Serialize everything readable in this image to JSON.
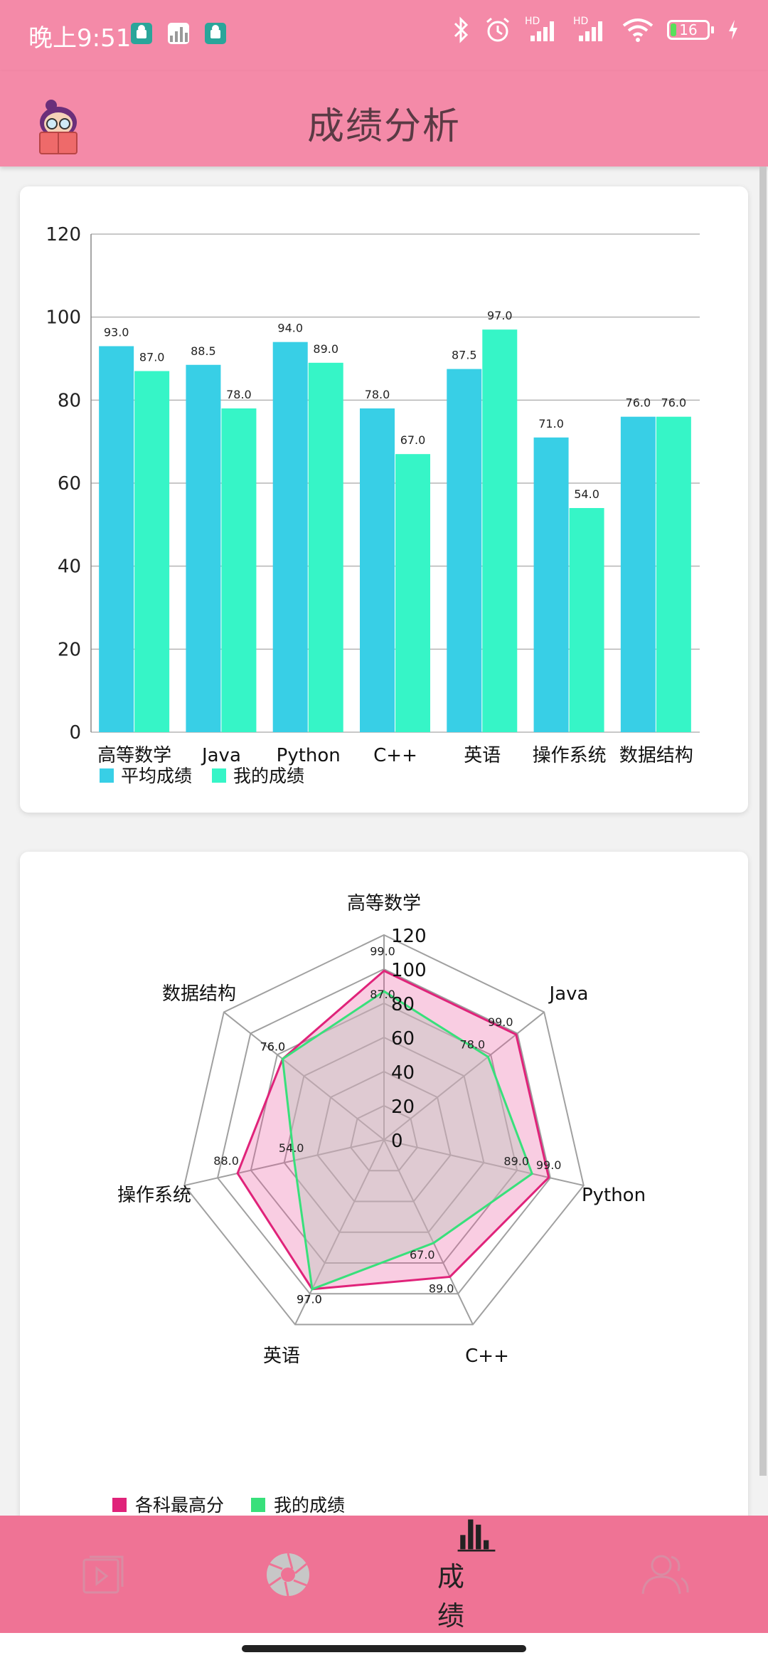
{
  "status_bar": {
    "time": "晚上9:51",
    "network_badge_1": "HD",
    "network_badge_2": "HD",
    "battery_level": "16",
    "icons": [
      "android-notification-icon",
      "image-notification-icon",
      "android-notification-icon",
      "bluetooth-icon",
      "alarm-icon",
      "signal-icon",
      "signal-icon",
      "wifi-icon",
      "battery-icon",
      "charging-icon"
    ]
  },
  "app_bar": {
    "title": "成绩分析",
    "logo": "reading-student-logo"
  },
  "colors": {
    "header_bg": "#f48aa8",
    "nav_bg": "#ef7395",
    "bar_avg": "#38cfe6",
    "bar_mine": "#36f5c7",
    "radar_max": "#e0237a",
    "radar_mine": "#38e07b"
  },
  "chart_data": [
    {
      "type": "bar",
      "categories": [
        "高等数学",
        "Java",
        "Python",
        "C++",
        "英语",
        "操作系统",
        "数据结构"
      ],
      "series": [
        {
          "name": "平均成绩",
          "values": [
            93.0,
            88.5,
            94.0,
            78.0,
            87.5,
            71.0,
            76.0
          ],
          "labels": [
            "93.0",
            "88.5",
            "94.0",
            "78.0",
            "87.5",
            "71.0",
            "76.0"
          ]
        },
        {
          "name": "我的成绩",
          "values": [
            87.0,
            78.0,
            89.0,
            67.0,
            97.0,
            54.0,
            76.0
          ],
          "labels": [
            "87.0",
            "78.0",
            "89.0",
            "67.0",
            "97.0",
            "54.0",
            "76.0"
          ]
        }
      ],
      "y_ticks": [
        "0",
        "20",
        "40",
        "60",
        "80",
        "100",
        "120"
      ],
      "ylim": [
        0,
        120
      ],
      "grid": true,
      "legend": "bottom-left"
    },
    {
      "type": "radar",
      "categories": [
        "高等数学",
        "Java",
        "Python",
        "C++",
        "英语",
        "操作系统",
        "数据结构"
      ],
      "series": [
        {
          "name": "各科最高分",
          "values": [
            99.0,
            99.0,
            99.0,
            89.0,
            97.0,
            88.0,
            76.0
          ],
          "labels": [
            "99.0",
            "99.0",
            "99.0",
            "89.0",
            "97.0",
            "88.0",
            "76.0"
          ]
        },
        {
          "name": "我的成绩",
          "values": [
            87.0,
            78.0,
            89.0,
            67.0,
            97.0,
            54.0,
            76.0
          ],
          "labels": [
            "87.0",
            "78.0",
            "89.0",
            "67.0",
            "97.0",
            "54.0",
            "76.0"
          ]
        }
      ],
      "r_ticks": [
        "0",
        "20",
        "40",
        "60",
        "80",
        "100",
        "120"
      ],
      "rlim": [
        0,
        120
      ],
      "legend": "bottom-left"
    }
  ],
  "bottom_nav": {
    "items": [
      {
        "icon": "video-icon",
        "label": ""
      },
      {
        "icon": "shutter-icon",
        "label": ""
      },
      {
        "icon": "bar-chart-icon",
        "label": "成 绩",
        "active": true
      },
      {
        "icon": "users-icon",
        "label": ""
      }
    ]
  }
}
